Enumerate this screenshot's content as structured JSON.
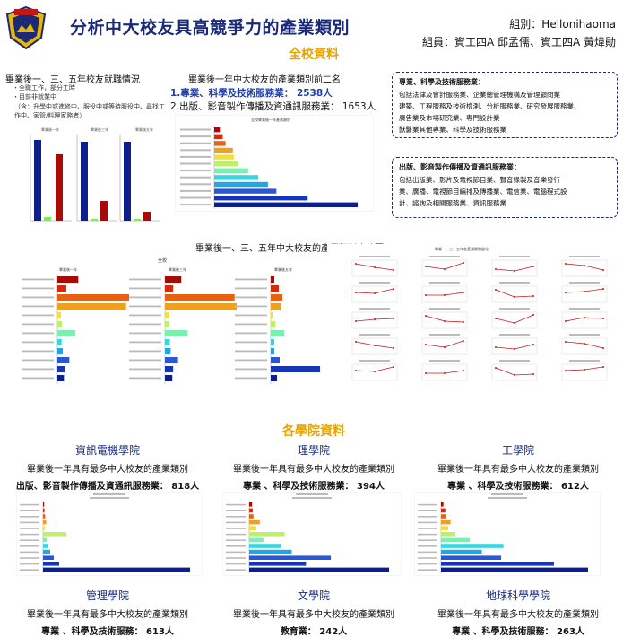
{
  "header": {
    "title": "分析中大校友具高競爭力的產業類別",
    "group": "組別：Hellonihaoma",
    "members": "組員：資工四A 邱孟儒、資工四A 黃煒勛"
  },
  "sections": {
    "school": "全校資料",
    "college": "各學院資料"
  },
  "employment": {
    "heading": "畢業後一、三、五年校友就職情況",
    "legend": [
      "・全職工作，部分工時",
      "・目前非就業中"
    ],
    "note": "（含：升學中或進修中、服役中或等待服役中、尋找工作中、家管/料理家務者）",
    "chart_titles": [
      "畢業後一年",
      "畢業後三年",
      "畢業後五年"
    ]
  },
  "top2": {
    "heading": "畢業後一年中大校友的產業類別前二名",
    "items": [
      "1.專業、科學及技術服務業： 2538人",
      "2.出版、影音製作傳播及資通訊服務業： 1653人"
    ],
    "chart_title": "全校畢業後一年產業類別"
  },
  "box1": {
    "heading": "專業、科學及技術服務業：",
    "lines": [
      "包括法律及會計服務業、企業總管理機構及管理顧問業",
      "建築、工程服務及技術檢測、分析服務業、研究發展服務業、",
      "廣告業及市場研究業、專門設計業",
      "獸醫業其他專業、科學及技術服務業"
    ]
  },
  "box2": {
    "heading": "出版、影音製作傳播及資通訊服務業：",
    "lines": [
      "包括出版業、影片及電視節目業、聲音錄製及音樂發行",
      "業、廣播、電視節目編排及傳播業、電信業、電腦程式設",
      "計、諮詢及相關服務業、資訊服務業"
    ]
  },
  "trend": {
    "heading": "畢業後一、三、五年中大校友的產業類別趨勢圖",
    "overall_label": "全校",
    "sub_titles": [
      "畢業後一年",
      "畢業後三年",
      "畢業後五年"
    ],
    "grid_title": "畢業一、三、五年各產業類別變化"
  },
  "colleges": [
    {
      "name": "資訊電機學院",
      "desc": "畢業後一年具有最多中大校友的產業類別",
      "value": "出版、影音製作傳播及資通訊服務業： 818人"
    },
    {
      "name": "理學院",
      "desc": "畢業後一年具有最多中大校友的產業類別",
      "value": "專業 、科學及技術服務業： 394人"
    },
    {
      "name": "工學院",
      "desc": "畢業後一年具有最多中大校友的產業類別",
      "value": "專業 、科學及技術服務業： 612人"
    },
    {
      "name": "管理學院",
      "desc": "畢業後一年具有最多中大校友的產業類別",
      "value": "專業 、科學及技術服務： 613人"
    },
    {
      "name": "文學院",
      "desc": "畢業後一年具有最多中大校友的產業類別",
      "value": "教育業： 242人"
    },
    {
      "name": "地球科學學院",
      "desc": "畢業後一年具有最多中大校友的產業類別",
      "value": "專業 、科學及技術服務： 263人"
    }
  ],
  "colors": {
    "title": "#1a2a78",
    "section": "#e8a400",
    "bar_palette": [
      "#0d1f8c",
      "#1636b3",
      "#2b57d6",
      "#1ea6e6",
      "#38d4e0",
      "#7af0b0",
      "#bff06a",
      "#f0e040",
      "#f0a020",
      "#e86010",
      "#d42a10",
      "#a80a08"
    ]
  },
  "chart_data": [
    {
      "type": "bar",
      "title": "全校畢業後一年產業類別",
      "orientation": "horizontal",
      "values": [
        2538,
        1653,
        1100,
        950,
        780,
        600,
        420,
        350,
        330,
        200,
        150,
        100
      ]
    }
  ]
}
